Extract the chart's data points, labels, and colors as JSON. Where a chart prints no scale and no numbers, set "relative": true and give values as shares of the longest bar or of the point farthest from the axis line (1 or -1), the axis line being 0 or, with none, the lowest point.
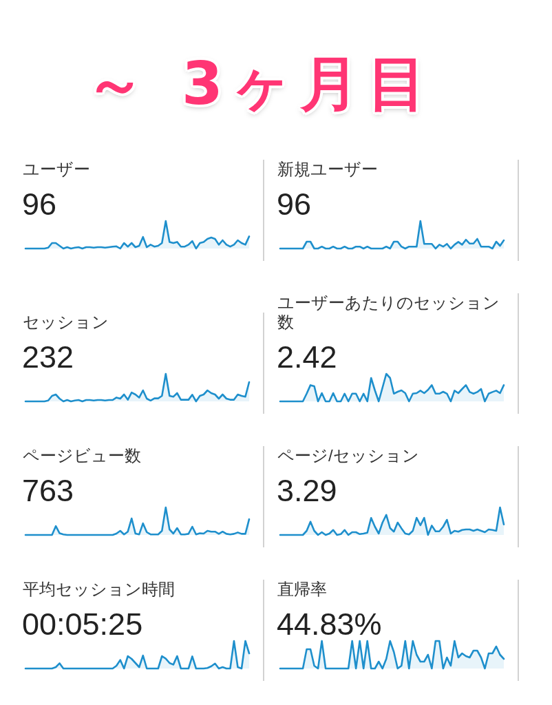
{
  "chart_data": [
    {
      "type": "other",
      "title": "～ 3ヶ月目"
    },
    {
      "type": "area",
      "title": "ユーザー",
      "subtitle": "96",
      "relative": true,
      "tick_labels": false,
      "color": "#1e8fcc",
      "categories": [
        null,
        null,
        null,
        null,
        null,
        null,
        null,
        null,
        null,
        null,
        null,
        null,
        null,
        null,
        null,
        null,
        null,
        null,
        null,
        null,
        null,
        null,
        null,
        null,
        null,
        null,
        null,
        null,
        null,
        null,
        null,
        null,
        null,
        null,
        null,
        null,
        null,
        null,
        null,
        null,
        null,
        null,
        null,
        null,
        null,
        null,
        null,
        null,
        null,
        null,
        null,
        null,
        null,
        null,
        null,
        null,
        null,
        null,
        null,
        null
      ],
      "values": [
        0,
        0,
        0,
        0,
        0,
        0,
        0.03,
        0.2,
        0.2,
        0.1,
        0,
        0.05,
        0,
        0.03,
        0.05,
        0,
        0.05,
        0.05,
        0.03,
        0.05,
        0.05,
        0.03,
        0.05,
        0.07,
        0.08,
        0,
        0.2,
        0.07,
        0.2,
        0.05,
        0.1,
        0.42,
        0.05,
        0.14,
        0.07,
        0.1,
        0.2,
        1,
        0.24,
        0.2,
        0.24,
        0.07,
        0.07,
        0.14,
        0.27,
        0,
        0.2,
        0.24,
        0.35,
        0.4,
        0.35,
        0.14,
        0.3,
        0.14,
        0.07,
        0.14,
        0.3,
        0.2,
        0.14,
        0.44
      ]
    },
    {
      "type": "area",
      "title": "新規ユーザー",
      "subtitle": "96",
      "relative": true,
      "tick_labels": false,
      "color": "#1e8fcc",
      "categories": [
        null,
        null,
        null,
        null,
        null,
        null,
        null,
        null,
        null,
        null,
        null,
        null,
        null,
        null,
        null,
        null,
        null,
        null,
        null,
        null,
        null,
        null,
        null,
        null,
        null,
        null,
        null,
        null,
        null,
        null,
        null,
        null,
        null,
        null,
        null,
        null,
        null,
        null,
        null,
        null,
        null,
        null,
        null,
        null,
        null,
        null,
        null,
        null,
        null,
        null,
        null,
        null,
        null,
        null,
        null,
        null,
        null,
        null,
        null,
        null
      ],
      "values": [
        0,
        0,
        0,
        0,
        0,
        0,
        0,
        0.25,
        0.25,
        0,
        0,
        0.07,
        0,
        0,
        0.07,
        0,
        0,
        0.07,
        0,
        0,
        0.07,
        0.07,
        0,
        0.07,
        0,
        0,
        0,
        0,
        0.07,
        0,
        0.25,
        0.25,
        0.07,
        0,
        0.07,
        0.07,
        0.07,
        1,
        0.17,
        0.17,
        0.17,
        0,
        0.14,
        0.07,
        0.17,
        0,
        0.14,
        0.24,
        0.14,
        0.32,
        0.18,
        0.18,
        0.35,
        0.07,
        0.07,
        0.07,
        0,
        0.25,
        0.1,
        0.3
      ]
    },
    {
      "type": "area",
      "title": "セッション",
      "subtitle": "232",
      "relative": true,
      "tick_labels": false,
      "color": "#1e8fcc",
      "categories": [
        null,
        null,
        null,
        null,
        null,
        null,
        null,
        null,
        null,
        null,
        null,
        null,
        null,
        null,
        null,
        null,
        null,
        null,
        null,
        null,
        null,
        null,
        null,
        null,
        null,
        null,
        null,
        null,
        null,
        null,
        null,
        null,
        null,
        null,
        null,
        null,
        null,
        null,
        null,
        null,
        null,
        null,
        null,
        null,
        null,
        null,
        null,
        null,
        null,
        null,
        null,
        null,
        null,
        null,
        null,
        null,
        null,
        null,
        null,
        null
      ],
      "values": [
        0,
        0,
        0,
        0,
        0,
        0,
        0.03,
        0.2,
        0.25,
        0.1,
        0,
        0.05,
        0,
        0.03,
        0.05,
        0,
        0.05,
        0.05,
        0.03,
        0.05,
        0.05,
        0.03,
        0.05,
        0.05,
        0.14,
        0.1,
        0.25,
        0.06,
        0.32,
        0.25,
        0.14,
        0.4,
        0.1,
        0.03,
        0.11,
        0.11,
        0.2,
        1,
        0.2,
        0.17,
        0.3,
        0.06,
        0.06,
        0.06,
        0.24,
        0,
        0.2,
        0.25,
        0.4,
        0.3,
        0.25,
        0.1,
        0.25,
        0.1,
        0.06,
        0.06,
        0.25,
        0.2,
        0.17,
        0.7
      ]
    },
    {
      "type": "area",
      "title": "ユーザーあたりのセッション数",
      "subtitle": "2.42",
      "relative": true,
      "tick_labels": false,
      "color": "#1e8fcc",
      "categories": [
        null,
        null,
        null,
        null,
        null,
        null,
        null,
        null,
        null,
        null,
        null,
        null,
        null,
        null,
        null,
        null,
        null,
        null,
        null,
        null,
        null,
        null,
        null,
        null,
        null,
        null,
        null,
        null,
        null,
        null,
        null,
        null,
        null,
        null,
        null,
        null,
        null,
        null,
        null,
        null,
        null,
        null,
        null,
        null,
        null,
        null,
        null,
        null,
        null,
        null,
        null,
        null,
        null,
        null,
        null,
        null,
        null,
        null,
        null,
        null
      ],
      "values": [
        0,
        0,
        0,
        0,
        0,
        0,
        0,
        0.28,
        0.59,
        0.55,
        0,
        0.3,
        0,
        0,
        0.3,
        0,
        0,
        0.28,
        0,
        0.28,
        0.28,
        0,
        0.28,
        0,
        0.85,
        0.4,
        0,
        0.5,
        1,
        0.85,
        0.28,
        0.35,
        0.4,
        0.3,
        0,
        0.28,
        0.3,
        0.39,
        0.3,
        0.42,
        0.59,
        0.28,
        0.28,
        0.35,
        0.28,
        0,
        0.39,
        0.3,
        0.45,
        0.59,
        0.34,
        0.28,
        0.34,
        0.45,
        0,
        0.28,
        0.34,
        0.39,
        0.3,
        0.59
      ]
    },
    {
      "type": "area",
      "title": "ページビュー数",
      "subtitle": "763",
      "relative": true,
      "tick_labels": false,
      "color": "#1e8fcc",
      "categories": [
        null,
        null,
        null,
        null,
        null,
        null,
        null,
        null,
        null,
        null,
        null,
        null,
        null,
        null,
        null,
        null,
        null,
        null,
        null,
        null,
        null,
        null,
        null,
        null,
        null,
        null,
        null,
        null,
        null,
        null,
        null,
        null,
        null,
        null,
        null,
        null,
        null,
        null,
        null,
        null,
        null,
        null,
        null,
        null,
        null,
        null,
        null,
        null,
        null,
        null,
        null,
        null,
        null,
        null,
        null,
        null,
        null,
        null,
        null,
        null
      ],
      "values": [
        0,
        0,
        0,
        0,
        0,
        0,
        0,
        0,
        0.32,
        0.06,
        0.02,
        0,
        0,
        0,
        0,
        0,
        0,
        0,
        0,
        0,
        0,
        0,
        0,
        0,
        0.05,
        0.15,
        0.02,
        0.12,
        0.6,
        0.05,
        0.02,
        0.42,
        0.1,
        0.02,
        0.02,
        0.02,
        0.15,
        1,
        0.2,
        0.05,
        0.25,
        0.02,
        0.02,
        0.04,
        0.3,
        0.02,
        0.06,
        0.05,
        0.15,
        0.12,
        0.12,
        0.04,
        0.12,
        0.04,
        0.02,
        0.04,
        0.09,
        0.04,
        0.04,
        0.57
      ]
    },
    {
      "type": "area",
      "title": "ページ/セッション",
      "subtitle": "3.29",
      "relative": true,
      "tick_labels": false,
      "color": "#1e8fcc",
      "categories": [
        null,
        null,
        null,
        null,
        null,
        null,
        null,
        null,
        null,
        null,
        null,
        null,
        null,
        null,
        null,
        null,
        null,
        null,
        null,
        null,
        null,
        null,
        null,
        null,
        null,
        null,
        null,
        null,
        null,
        null,
        null,
        null,
        null,
        null,
        null,
        null,
        null,
        null,
        null,
        null,
        null,
        null,
        null,
        null,
        null,
        null,
        null,
        null,
        null,
        null,
        null,
        null,
        null,
        null,
        null,
        null,
        null,
        null,
        null,
        null
      ],
      "values": [
        0,
        0,
        0,
        0,
        0,
        0,
        0,
        0.15,
        0.48,
        0.15,
        0,
        0.1,
        0,
        0.05,
        0.18,
        0,
        0.03,
        0.18,
        0,
        0.1,
        0.1,
        0.03,
        0.05,
        0.08,
        0.62,
        0.3,
        0.05,
        0.45,
        0.73,
        0.25,
        0.12,
        0.45,
        0.24,
        0.05,
        0.02,
        0.15,
        0.62,
        0.35,
        0.62,
        0,
        0.34,
        0.13,
        0.13,
        0.3,
        0.55,
        0.05,
        0.15,
        0.12,
        0.18,
        0.2,
        0.2,
        0.15,
        0.2,
        0.15,
        0.1,
        0.2,
        0.18,
        0.15,
        1,
        0.38
      ]
    },
    {
      "type": "area",
      "title": "平均セッション時間",
      "subtitle": "00:05:25",
      "relative": true,
      "tick_labels": false,
      "color": "#1e8fcc",
      "categories": [
        null,
        null,
        null,
        null,
        null,
        null,
        null,
        null,
        null,
        null,
        null,
        null,
        null,
        null,
        null,
        null,
        null,
        null,
        null,
        null,
        null,
        null,
        null,
        null,
        null,
        null,
        null,
        null,
        null,
        null,
        null,
        null,
        null,
        null,
        null,
        null,
        null,
        null,
        null,
        null,
        null,
        null,
        null,
        null,
        null,
        null,
        null,
        null,
        null,
        null,
        null,
        null,
        null,
        null,
        null,
        null,
        null,
        null,
        null,
        null
      ],
      "values": [
        0,
        0,
        0,
        0,
        0,
        0,
        0,
        0,
        0.05,
        0.19,
        0,
        0,
        0,
        0,
        0,
        0,
        0,
        0,
        0,
        0,
        0,
        0,
        0,
        0,
        0.1,
        0.31,
        0,
        0.45,
        0.35,
        0.2,
        0.05,
        0.47,
        0,
        0,
        0,
        0,
        0.45,
        0.36,
        0.2,
        0.14,
        0.45,
        0,
        0,
        0,
        0.44,
        0,
        0,
        0,
        0.02,
        0.08,
        0.18,
        0,
        0.05,
        0,
        0,
        1,
        0.05,
        0,
        1,
        0.55
      ]
    },
    {
      "type": "area",
      "title": "直帰率",
      "subtitle": "44.83%",
      "relative": true,
      "tick_labels": false,
      "color": "#1e8fcc",
      "categories": [
        null,
        null,
        null,
        null,
        null,
        null,
        null,
        null,
        null,
        null,
        null,
        null,
        null,
        null,
        null,
        null,
        null,
        null,
        null,
        null,
        null,
        null,
        null,
        null,
        null,
        null,
        null,
        null,
        null,
        null,
        null,
        null,
        null,
        null,
        null,
        null,
        null,
        null,
        null,
        null,
        null,
        null,
        null,
        null,
        null,
        null,
        null,
        null,
        null,
        null,
        null,
        null,
        null,
        null,
        null,
        null,
        null,
        null,
        null,
        null
      ],
      "values": [
        0,
        0,
        0,
        0,
        0,
        0,
        0,
        0.7,
        0.7,
        0.1,
        0,
        1,
        0,
        0,
        0,
        0,
        0,
        0,
        0,
        1,
        0,
        1,
        0,
        1,
        0,
        0,
        0.25,
        0,
        0.35,
        1,
        0.6,
        0,
        0.1,
        1,
        0,
        1,
        0.5,
        0.25,
        0.25,
        0.5,
        0,
        1,
        1,
        0,
        0.4,
        0.1,
        1,
        0.4,
        0.55,
        0.45,
        0.4,
        0.65,
        0.65,
        0.4,
        0,
        0.55,
        0.55,
        0.8,
        0.5,
        0.35
      ]
    }
  ]
}
